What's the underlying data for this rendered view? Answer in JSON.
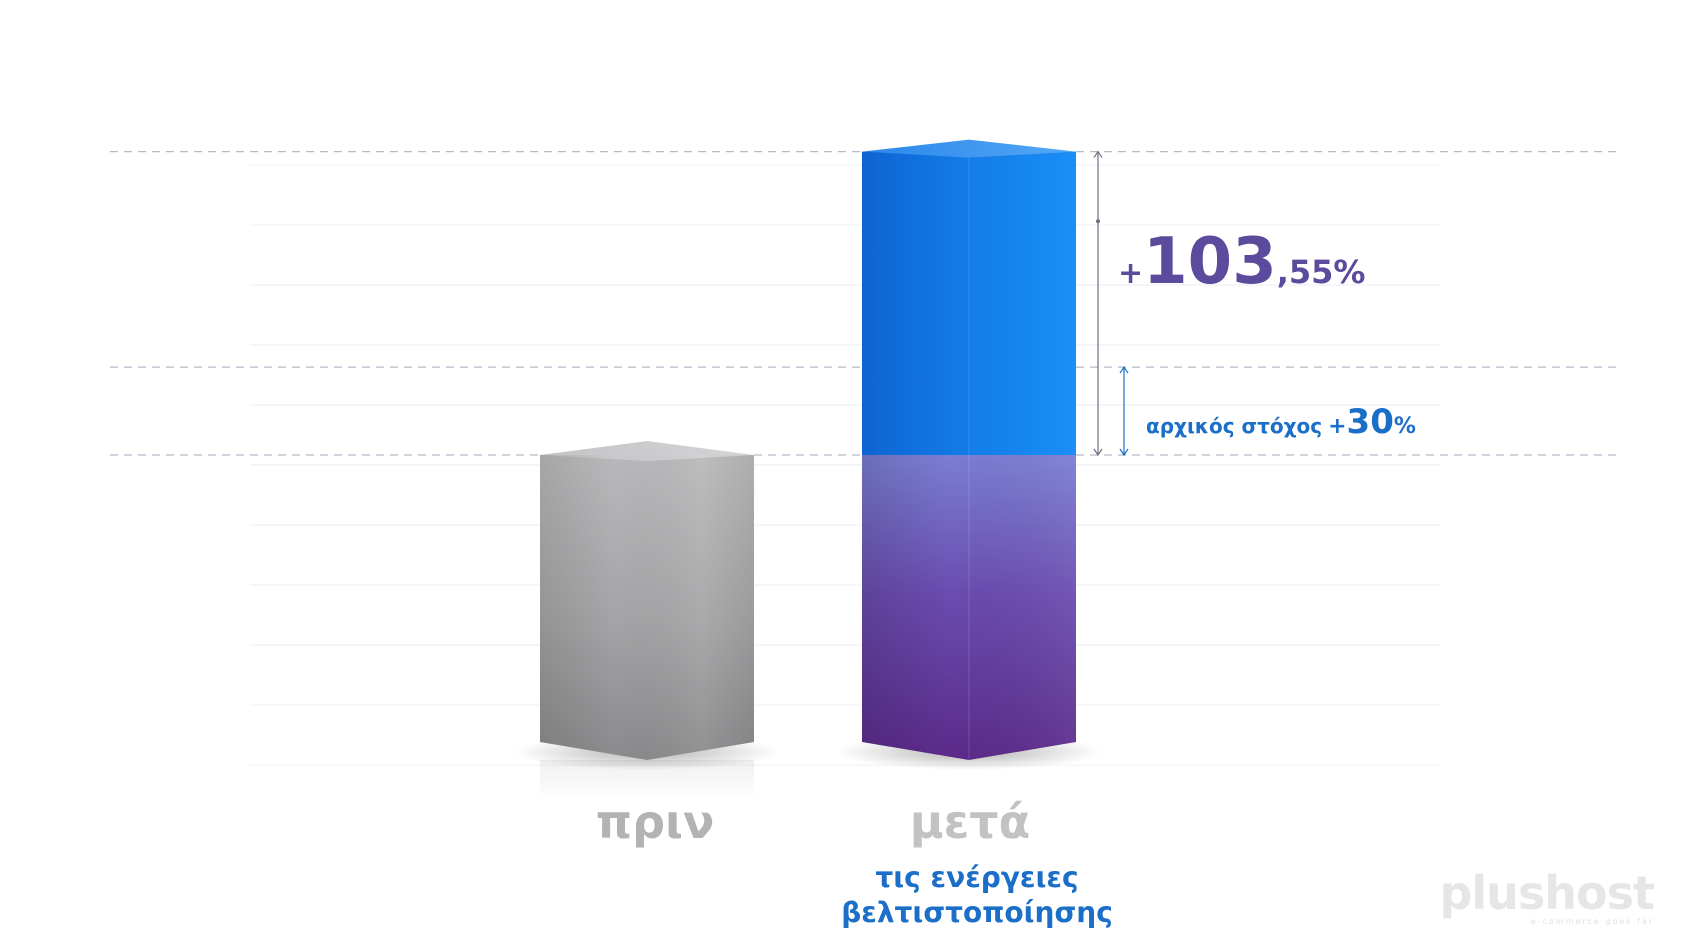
{
  "chart_data": {
    "type": "bar",
    "title": "",
    "xlabel": "",
    "ylabel": "",
    "categories": [
      "πριν",
      "μετά"
    ],
    "category_sublabel": [
      "",
      "τις ενέργειες βελτιστοποίησης"
    ],
    "category_sublabel_lines": [
      "τις ενέργειες",
      "βελτιστοποίησης"
    ],
    "values": [
      100,
      203.55
    ],
    "baseline_value": 100,
    "target_value": 130,
    "ylim": [
      0,
      210
    ],
    "grid": true,
    "legend": "none",
    "annotations": {
      "increase": {
        "prefix": "+",
        "main": "103",
        "suffix": ",55%",
        "value": 103.55
      },
      "target": {
        "label": "αρχικός στόχος",
        "prefix": "+",
        "main": "30",
        "suffix": "%",
        "value": 30
      }
    },
    "colors": {
      "before_bar": "#a2a2a4",
      "after_bar_top": "#1587f0",
      "after_bar_bottom": "#5e2c8c",
      "before_label": "#b3b3b3",
      "after_label": "#c2c2c2",
      "sublabel": "#1b6fc8",
      "increase_text": "#5c4a9c",
      "target_text": "#1b6fc8",
      "dash_line": "#9aa6b8"
    }
  },
  "brand": {
    "name": "plushost",
    "tagline": "e-commerce goes far"
  }
}
